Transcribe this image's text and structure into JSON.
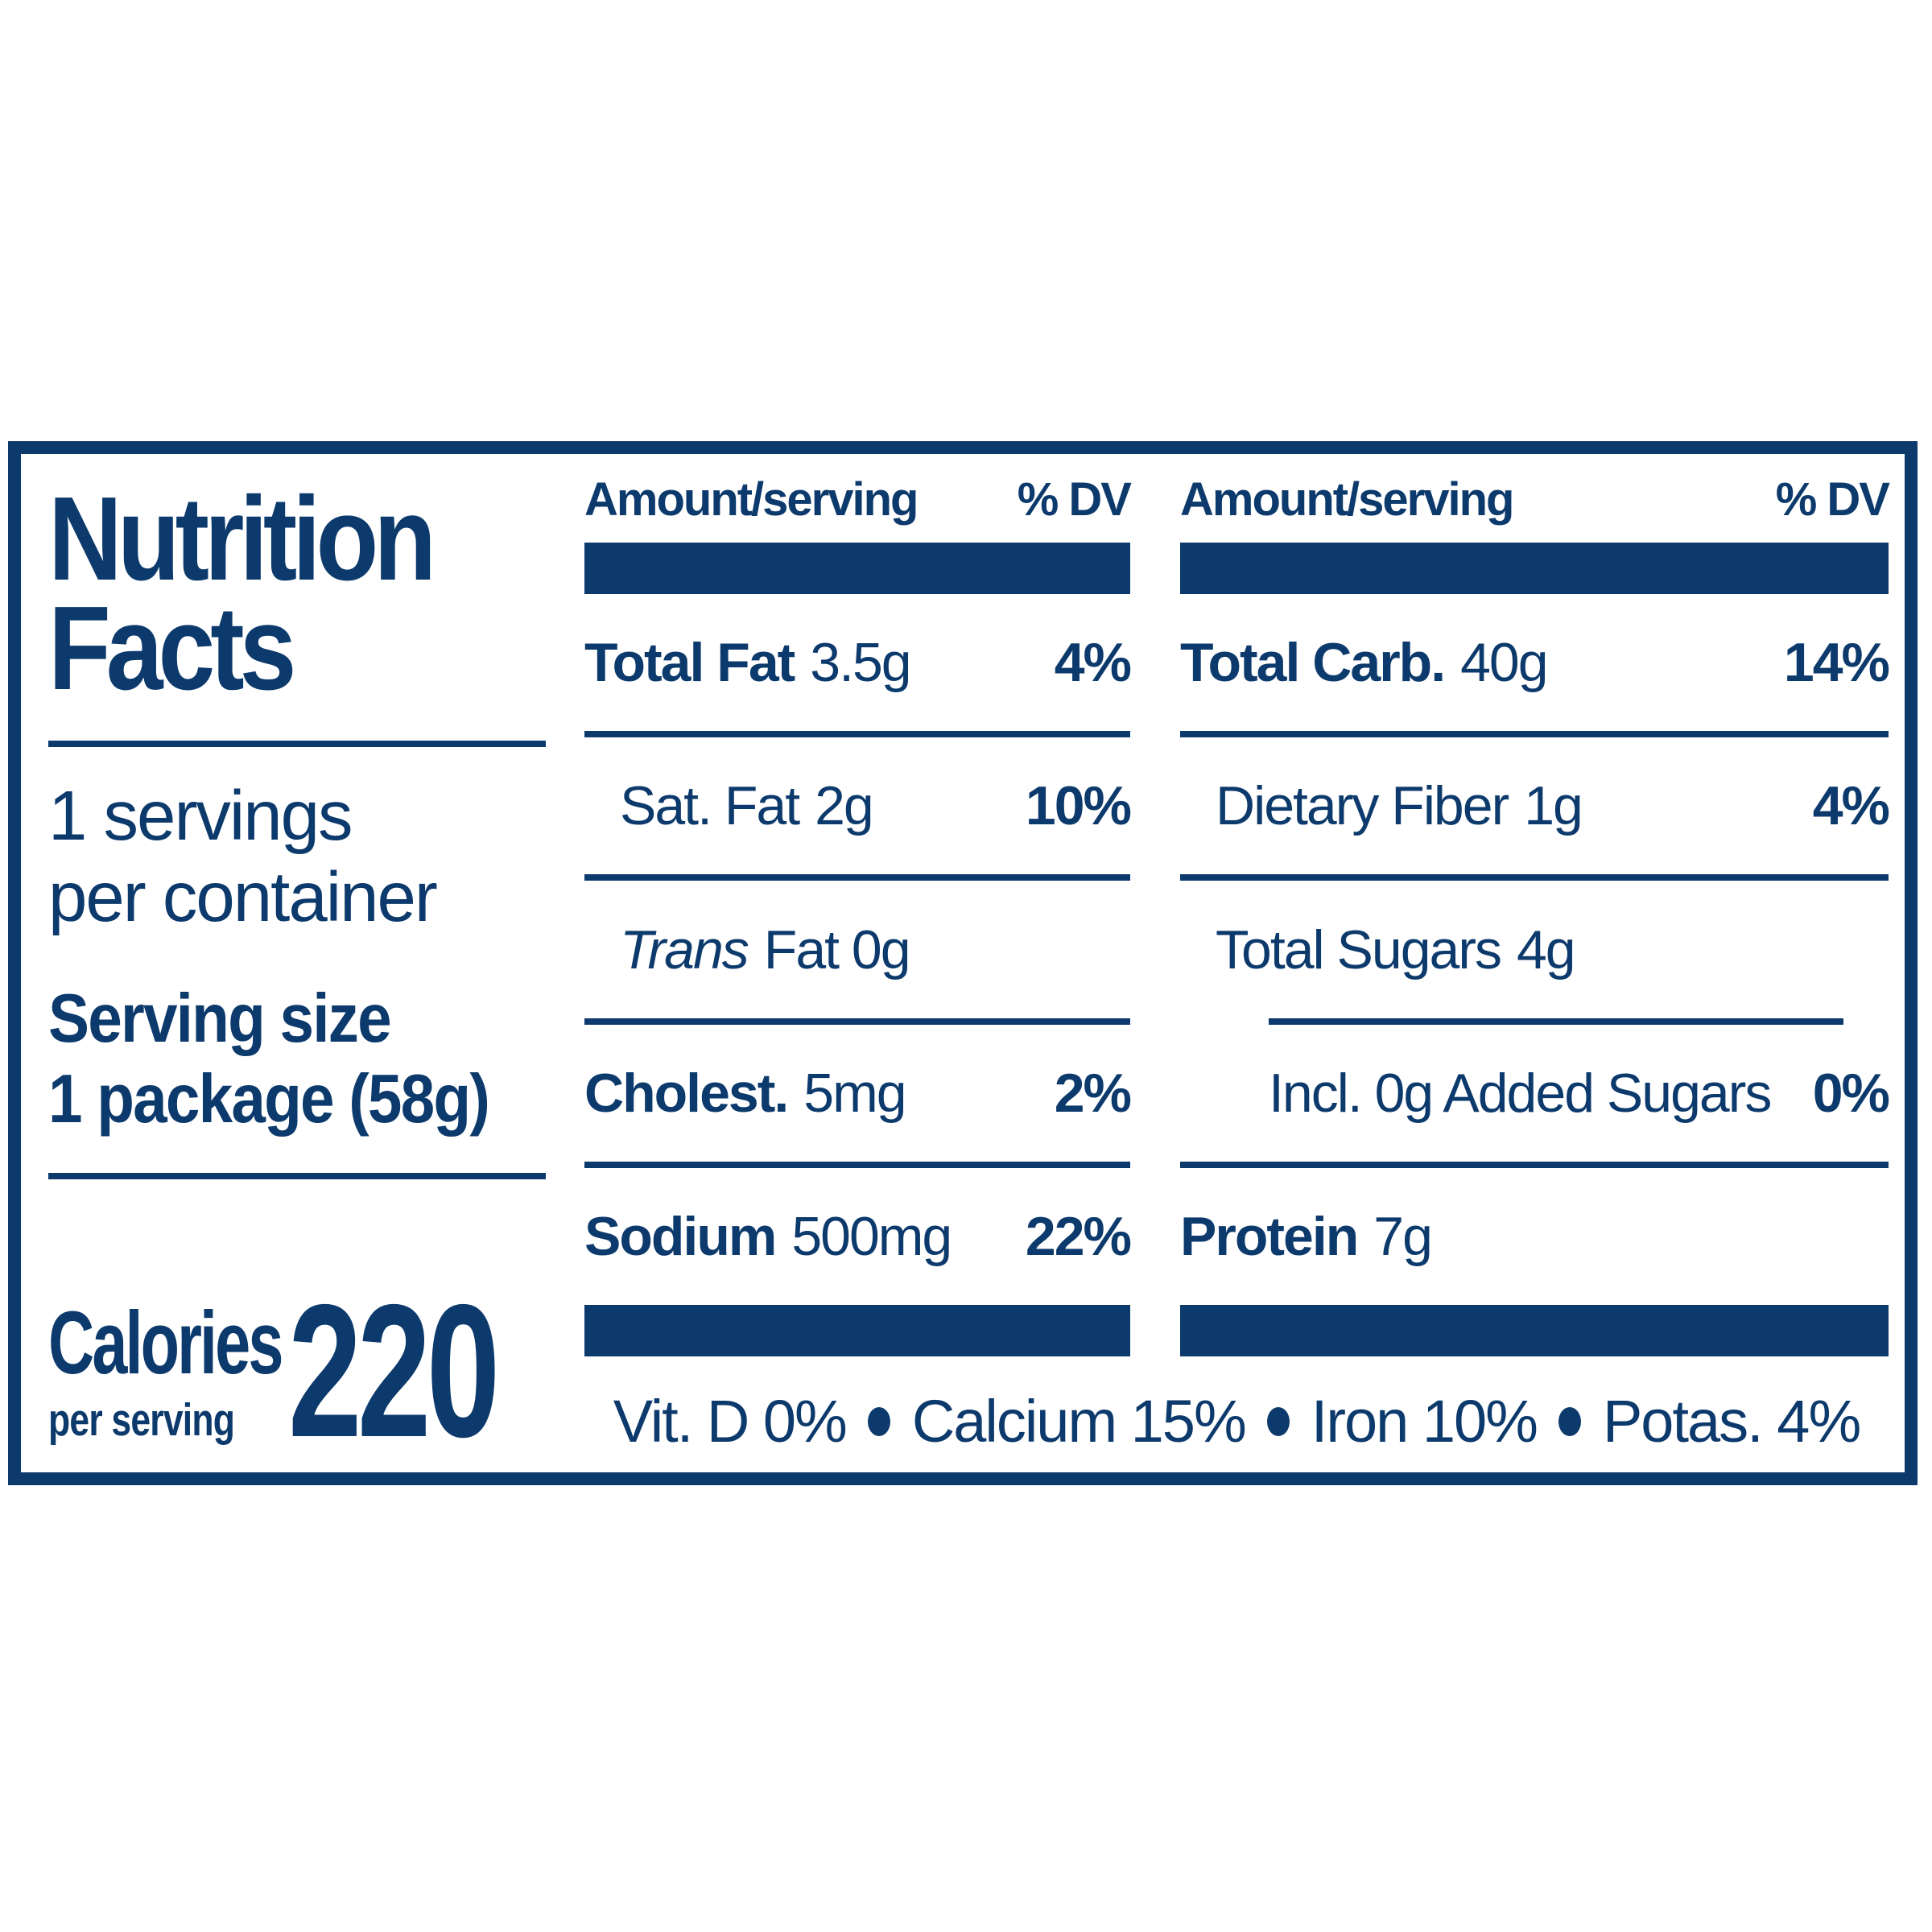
{
  "colors": {
    "navy": "#0d3a6c",
    "background": "#ffffff"
  },
  "label": {
    "title_line1": "Nutrition",
    "title_line2": "Facts",
    "servings_line1": "1 servings",
    "servings_line2": "per container",
    "serving_size_label": "Serving size",
    "serving_size_value": "1 package (58g)",
    "calories_label": "Calories",
    "calories_sub": "per serving",
    "calories_value": "220",
    "col_header_amount": "Amount/serving",
    "col_header_dv": "% DV",
    "mid_rows": [
      {
        "name": "Total Fat",
        "value": "3.5g",
        "dv": "4%",
        "name_bold": true,
        "name_italic": false,
        "indent": 0,
        "rule_before": null
      },
      {
        "name": "Sat. Fat",
        "value": "2g",
        "dv": "10%",
        "name_bold": false,
        "name_italic": false,
        "indent": 1,
        "rule_before": "full"
      },
      {
        "name": "Trans",
        "value": "Fat 0g",
        "dv": "",
        "name_bold": false,
        "name_italic": true,
        "indent": 1,
        "rule_before": "full"
      },
      {
        "name": "Cholest.",
        "value": "5mg",
        "dv": "2%",
        "name_bold": true,
        "name_italic": false,
        "indent": 0,
        "rule_before": "full"
      },
      {
        "name": "Sodium",
        "value": "500mg",
        "dv": "22%",
        "name_bold": true,
        "name_italic": false,
        "indent": 0,
        "rule_before": "full"
      }
    ],
    "right_rows": [
      {
        "name": "Total Carb.",
        "value": "40g",
        "dv": "14%",
        "name_bold": true,
        "name_italic": false,
        "indent": 0,
        "rule_before": null
      },
      {
        "name": "Dietary Fiber",
        "value": "1g",
        "dv": "4%",
        "name_bold": false,
        "name_italic": false,
        "indent": 1,
        "rule_before": "full"
      },
      {
        "name": "Total Sugars",
        "value": "4g",
        "dv": "",
        "name_bold": false,
        "name_italic": false,
        "indent": 1,
        "rule_before": "full"
      },
      {
        "name": "Incl. 0g Added Sugars",
        "value": "",
        "dv": "0%",
        "name_bold": false,
        "name_italic": false,
        "indent": 2,
        "rule_before": "indent"
      },
      {
        "name": "Protein",
        "value": "7g",
        "dv": "",
        "name_bold": true,
        "name_italic": false,
        "indent": 0,
        "rule_before": "full"
      }
    ],
    "footer": [
      "Vit. D 0%",
      "Calcium 15%",
      "Iron 10%",
      "Potas. 4%"
    ]
  }
}
